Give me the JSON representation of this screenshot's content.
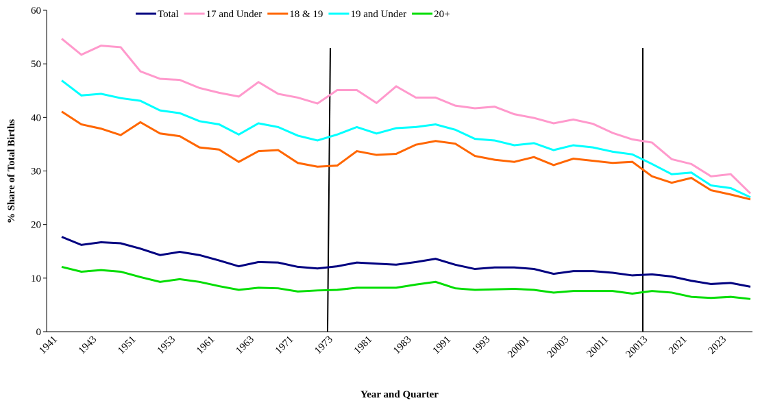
{
  "chart_data": {
    "type": "line",
    "x_label": "Year and Quarter",
    "y_label": "% Share of Total Births",
    "categories": [
      "1941",
      null,
      "1943",
      null,
      "1951",
      null,
      "1953",
      null,
      "1961",
      null,
      "1963",
      null,
      "1971",
      null,
      "1973",
      null,
      "1981",
      null,
      "1983",
      null,
      "1991",
      null,
      "1993",
      null,
      "20001",
      null,
      "20003",
      null,
      "20011",
      null,
      "20013",
      null,
      "2021",
      null,
      "2023",
      null
    ],
    "series": [
      {
        "name": "Total",
        "color": "#000080",
        "values": [
          17.7,
          16.2,
          16.7,
          16.5,
          15.5,
          14.3,
          14.9,
          14.3,
          13.3,
          12.2,
          13.0,
          12.9,
          12.1,
          11.8,
          12.2,
          12.9,
          12.7,
          12.5,
          13.0,
          13.6,
          12.5,
          11.7,
          12.0,
          12.0,
          11.7,
          10.8,
          11.3,
          11.3,
          11.0,
          10.5,
          10.7,
          10.3,
          9.5,
          8.9,
          9.1,
          8.4
        ]
      },
      {
        "name": "17 and Under",
        "color": "#ff99cc",
        "values": [
          54.7,
          51.7,
          53.4,
          53.1,
          48.6,
          47.2,
          47.0,
          45.5,
          44.6,
          43.9,
          46.6,
          44.4,
          43.7,
          42.6,
          45.1,
          45.1,
          42.7,
          45.8,
          43.7,
          43.7,
          42.2,
          41.7,
          42.0,
          40.6,
          39.9,
          38.9,
          39.6,
          38.8,
          37.1,
          35.9,
          35.3,
          32.2,
          31.3,
          29.0,
          29.4,
          25.8
        ]
      },
      {
        "name": "18 & 19",
        "color": "#ff6600",
        "values": [
          41.1,
          38.7,
          37.9,
          36.7,
          39.1,
          37.0,
          36.5,
          34.4,
          34.0,
          31.7,
          33.7,
          33.9,
          31.5,
          30.8,
          31.0,
          33.7,
          33.0,
          33.2,
          34.9,
          35.6,
          35.1,
          32.8,
          32.1,
          31.7,
          32.6,
          31.1,
          32.3,
          31.9,
          31.5,
          31.7,
          29.0,
          27.8,
          28.7,
          26.4,
          25.6,
          24.7
        ]
      },
      {
        "name": "19 and Under",
        "color": "#00ffff",
        "values": [
          46.9,
          44.1,
          44.4,
          43.6,
          43.1,
          41.3,
          40.8,
          39.3,
          38.7,
          36.8,
          38.9,
          38.2,
          36.6,
          35.7,
          36.8,
          38.2,
          37.0,
          38.0,
          38.2,
          38.7,
          37.7,
          36.0,
          35.7,
          34.8,
          35.2,
          33.9,
          34.8,
          34.4,
          33.6,
          33.1,
          31.3,
          29.4,
          29.7,
          27.3,
          26.8,
          25.1
        ]
      },
      {
        "name": "20+",
        "color": "#00dd00",
        "values": [
          12.1,
          11.2,
          11.5,
          11.2,
          10.2,
          9.3,
          9.8,
          9.3,
          8.5,
          7.8,
          8.2,
          8.1,
          7.5,
          7.7,
          7.8,
          8.2,
          8.2,
          8.2,
          8.8,
          9.3,
          8.1,
          7.8,
          7.9,
          8.0,
          7.8,
          7.3,
          7.6,
          7.6,
          7.6,
          7.1,
          7.6,
          7.3,
          6.5,
          6.3,
          6.5,
          6.1
        ]
      }
    ],
    "ylim": [
      0,
      60
    ],
    "yticks": [
      0,
      10,
      20,
      30,
      40,
      50,
      60
    ],
    "legend": "top"
  }
}
